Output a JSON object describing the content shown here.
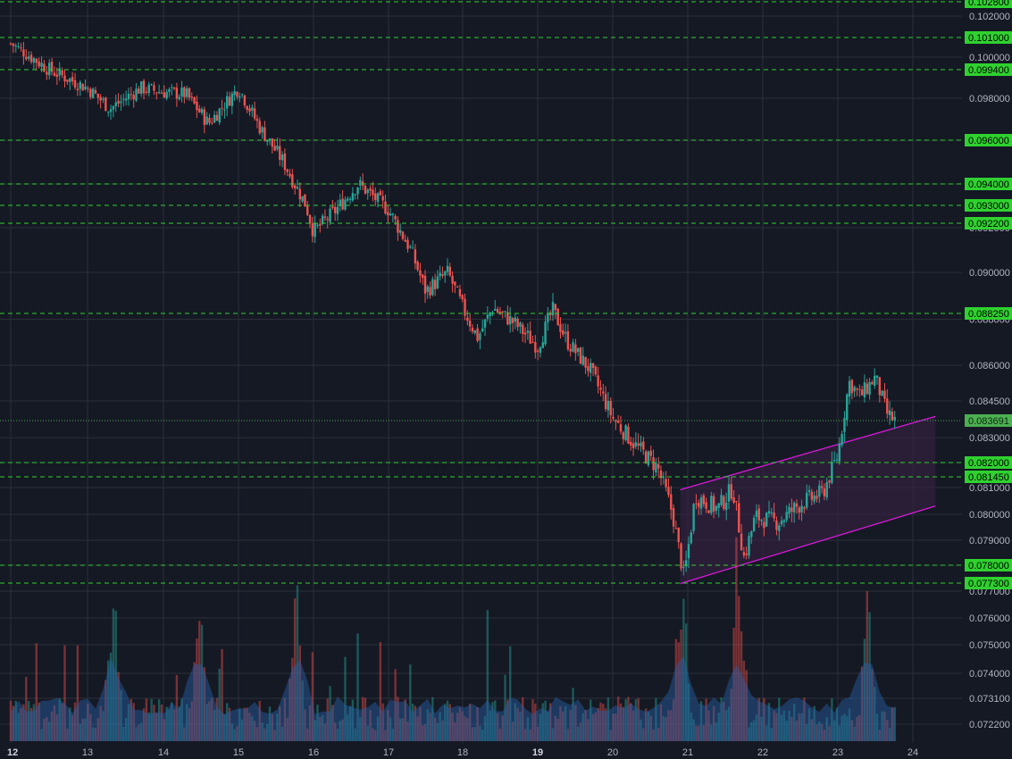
{
  "colors": {
    "background": "#151924",
    "grid": "#2a2e39",
    "up": "#26a69a",
    "down": "#ef5350",
    "level_line": "#2fd12f",
    "level_label_bg": "#2fd12f",
    "channel": "#d51ad6",
    "channel_fill": "#3a2245",
    "last_price": "#4caf50",
    "volume_area": "#2962a8"
  },
  "chart_data": {
    "type": "candlestick",
    "x_ticks": [
      "12",
      "13",
      "14",
      "15",
      "16",
      "17",
      "18",
      "19",
      "20",
      "21",
      "22",
      "23",
      "24"
    ],
    "x_bold_ticks": [
      "12",
      "19"
    ],
    "y_ticks": [
      "0.102000",
      "0.100000",
      "0.098000",
      "0.096000",
      "0.094000",
      "0.092000",
      "0.090000",
      "0.088000",
      "0.086000",
      "0.084500",
      "0.083000",
      "0.082000",
      "0.081000",
      "0.080000",
      "0.079000",
      "0.078000",
      "0.077000",
      "0.076000",
      "0.075000",
      "0.074000",
      "0.073100",
      "0.072200"
    ],
    "levels": [
      "0.102800",
      "0.101000",
      "0.099400",
      "0.096000",
      "0.094000",
      "0.093000",
      "0.092200",
      "0.088250",
      "0.082000",
      "0.081450",
      "0.078000",
      "0.077300"
    ],
    "last_price": "0.083691",
    "price_path": [
      [
        "12",
        0.1007
      ],
      [
        "12.5",
        0.0994
      ],
      [
        "13",
        0.0985
      ],
      [
        "13.3",
        0.0975
      ],
      [
        "13.7",
        0.0985
      ],
      [
        "14",
        0.0983
      ],
      [
        "14.3",
        0.0982
      ],
      [
        "14.6",
        0.0968
      ],
      [
        "15",
        0.0985
      ],
      [
        "15.3",
        0.0965
      ],
      [
        "15.6",
        0.095
      ],
      [
        "15.9",
        0.093
      ],
      [
        "16",
        0.0918
      ],
      [
        "16.3",
        0.0928
      ],
      [
        "16.6",
        0.094
      ],
      [
        "17",
        0.0928
      ],
      [
        "17.3",
        0.091
      ],
      [
        "17.5",
        0.0892
      ],
      [
        "17.8",
        0.09
      ],
      [
        "18",
        0.0885
      ],
      [
        "18.2",
        0.0872
      ],
      [
        "18.4",
        0.0885
      ],
      [
        "18.7",
        0.0878
      ],
      [
        "19",
        0.0868
      ],
      [
        "19.2",
        0.0884
      ],
      [
        "19.4",
        0.087
      ],
      [
        "19.7",
        0.0858
      ],
      [
        "20",
        0.0838
      ],
      [
        "20.3",
        0.0827
      ],
      [
        "20.6",
        0.0818
      ],
      [
        "20.8",
        0.08
      ],
      [
        "20.95",
        0.0775
      ],
      [
        "21.1",
        0.0807
      ],
      [
        "21.4",
        0.0802
      ],
      [
        "21.6",
        0.081
      ],
      [
        "21.75",
        0.0783
      ],
      [
        "21.9",
        0.0799
      ],
      [
        "22.2",
        0.0797
      ],
      [
        "22.5",
        0.0804
      ],
      [
        "22.8",
        0.0808
      ],
      [
        "23",
        0.0823
      ],
      [
        "23.15",
        0.0853
      ],
      [
        "23.3",
        0.0847
      ],
      [
        "23.5",
        0.0855
      ],
      [
        "23.65",
        0.084
      ],
      [
        "23.75",
        0.0837
      ]
    ],
    "channel": {
      "upper": [
        [
          "20.9",
          0.08092
        ],
        [
          "24.3",
          0.08386
        ]
      ],
      "lower": [
        [
          "20.9",
          0.07728
        ],
        [
          "24.3",
          0.08031
        ]
      ]
    },
    "volume_spikes": [
      "13.33",
      "14.48",
      "15.77",
      "20.93",
      "21.67",
      "23.4"
    ]
  }
}
